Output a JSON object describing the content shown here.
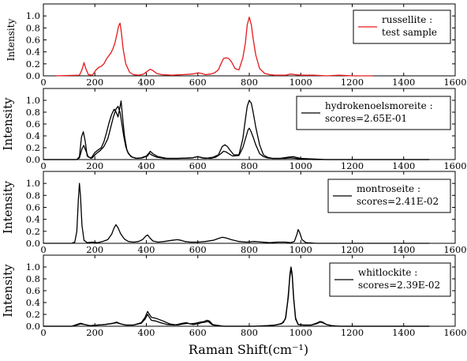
{
  "chart_data": [
    {
      "type": "line",
      "ylabel": "Intensity",
      "xlim": [
        0,
        1600
      ],
      "ylim": [
        0,
        1.2
      ],
      "xticks": [
        "0",
        "200",
        "400",
        "600",
        "800",
        "1000",
        "1200",
        "1400",
        "1600"
      ],
      "yticks": [
        "0.0",
        "0.2",
        "0.4",
        "0.6",
        "0.8",
        "1.0"
      ],
      "legend": {
        "line1": "russellite :",
        "line2": "test sample",
        "position": "top-right"
      },
      "series": [
        {
          "name": "russellite : test sample",
          "color": "#e31a1c",
          "x": [
            50,
            140,
            150,
            158,
            165,
            175,
            190,
            205,
            215,
            225,
            235,
            245,
            255,
            262,
            270,
            278,
            286,
            292,
            298,
            303,
            310,
            320,
            335,
            350,
            370,
            390,
            405,
            415,
            425,
            440,
            460,
            500,
            540,
            580,
            600,
            615,
            630,
            650,
            665,
            680,
            690,
            700,
            710,
            720,
            730,
            745,
            760,
            775,
            785,
            792,
            800,
            808,
            815,
            825,
            840,
            860,
            880,
            900,
            920,
            940,
            960,
            980,
            1000,
            1050,
            1100,
            1150,
            1200,
            1250,
            1280
          ],
          "y": [
            0.0,
            0.01,
            0.1,
            0.22,
            0.12,
            0.02,
            0.01,
            0.1,
            0.14,
            0.16,
            0.2,
            0.28,
            0.34,
            0.38,
            0.45,
            0.55,
            0.7,
            0.83,
            0.88,
            0.72,
            0.45,
            0.2,
            0.06,
            0.02,
            0.01,
            0.03,
            0.08,
            0.11,
            0.09,
            0.04,
            0.02,
            0.01,
            0.02,
            0.03,
            0.05,
            0.04,
            0.02,
            0.03,
            0.05,
            0.1,
            0.2,
            0.29,
            0.3,
            0.29,
            0.24,
            0.12,
            0.1,
            0.3,
            0.55,
            0.85,
            0.98,
            0.85,
            0.62,
            0.35,
            0.12,
            0.04,
            0.02,
            0.01,
            0.01,
            0.01,
            0.03,
            0.02,
            0.01,
            0.01,
            0.0,
            0.01,
            0.0,
            0.0,
            0.0
          ]
        }
      ]
    },
    {
      "type": "line",
      "ylabel": "Intensity",
      "xlim": [
        0,
        1600
      ],
      "ylim": [
        0,
        1.2
      ],
      "xticks": [
        "0",
        "200",
        "400",
        "600",
        "800",
        "1000",
        "1200",
        "1400",
        "1600"
      ],
      "yticks": [
        "0.0",
        "0.2",
        "0.4",
        "0.6",
        "0.8",
        "1.0"
      ],
      "legend": {
        "line1": "hydrokenoelsmoreite :",
        "line2": "scores=2.65E-01",
        "position": "top-right"
      },
      "series": [
        {
          "color": "#000000",
          "x": [
            0,
            130,
            140,
            148,
            155,
            162,
            170,
            185,
            200,
            215,
            225,
            235,
            245,
            255,
            265,
            275,
            283,
            290,
            296,
            302,
            308,
            315,
            325,
            340,
            360,
            380,
            400,
            410,
            420,
            440,
            470,
            520,
            580,
            600,
            615,
            630,
            660,
            680,
            695,
            705,
            715,
            725,
            740,
            760,
            775,
            785,
            792,
            800,
            808,
            815,
            825,
            840,
            855,
            870,
            890,
            910,
            940,
            960,
            980,
            1000,
            1050,
            1100,
            1200,
            1300,
            1400,
            1500
          ],
          "y": [
            0.0,
            0.0,
            0.05,
            0.38,
            0.47,
            0.32,
            0.06,
            0.02,
            0.12,
            0.17,
            0.2,
            0.3,
            0.45,
            0.62,
            0.76,
            0.85,
            0.8,
            0.72,
            0.85,
            0.99,
            0.7,
            0.4,
            0.15,
            0.05,
            0.02,
            0.03,
            0.06,
            0.11,
            0.08,
            0.04,
            0.02,
            0.02,
            0.03,
            0.05,
            0.03,
            0.02,
            0.04,
            0.08,
            0.22,
            0.25,
            0.22,
            0.16,
            0.08,
            0.08,
            0.35,
            0.68,
            0.9,
            1.0,
            0.95,
            0.8,
            0.55,
            0.25,
            0.08,
            0.04,
            0.02,
            0.02,
            0.02,
            0.03,
            0.02,
            0.01,
            0.0,
            0.0,
            0.0,
            0.0,
            0.0,
            0.0
          ]
        },
        {
          "color": "#000000",
          "x": [
            0,
            130,
            140,
            150,
            157,
            165,
            175,
            190,
            205,
            220,
            235,
            250,
            262,
            272,
            282,
            290,
            298,
            305,
            312,
            320,
            330,
            345,
            365,
            385,
            405,
            415,
            425,
            445,
            480,
            530,
            580,
            600,
            620,
            650,
            670,
            690,
            700,
            710,
            720,
            735,
            760,
            775,
            787,
            795,
            800,
            806,
            815,
            825,
            840,
            855,
            870,
            890,
            920,
            950,
            970,
            1000,
            1100,
            1200,
            1300,
            1400,
            1500
          ],
          "y": [
            0.0,
            0.0,
            0.03,
            0.18,
            0.24,
            0.15,
            0.04,
            0.03,
            0.1,
            0.15,
            0.22,
            0.35,
            0.55,
            0.72,
            0.85,
            0.9,
            0.8,
            0.6,
            0.4,
            0.22,
            0.1,
            0.04,
            0.02,
            0.03,
            0.06,
            0.14,
            0.1,
            0.05,
            0.02,
            0.02,
            0.03,
            0.05,
            0.03,
            0.02,
            0.04,
            0.1,
            0.14,
            0.13,
            0.1,
            0.06,
            0.07,
            0.2,
            0.38,
            0.5,
            0.53,
            0.48,
            0.38,
            0.25,
            0.1,
            0.05,
            0.03,
            0.02,
            0.02,
            0.04,
            0.05,
            0.02,
            0.0,
            0.0,
            0.0,
            0.0,
            0.0
          ]
        }
      ]
    },
    {
      "type": "line",
      "ylabel": "Intensity",
      "xlim": [
        0,
        1600
      ],
      "ylim": [
        0,
        1.2
      ],
      "xticks": [
        "0",
        "200",
        "400",
        "600",
        "800",
        "1000",
        "1200",
        "1400",
        "1600"
      ],
      "yticks": [
        "0.0",
        "0.2",
        "0.4",
        "0.6",
        "0.8",
        "1.0"
      ],
      "legend": {
        "line1": "montroseite :",
        "line2": "scores=2.41E-02",
        "position": "top-right"
      },
      "series": [
        {
          "color": "#000000",
          "x": [
            0,
            110,
            122,
            130,
            136,
            140,
            144,
            150,
            158,
            170,
            190,
            210,
            230,
            250,
            265,
            275,
            282,
            290,
            300,
            315,
            330,
            350,
            370,
            385,
            398,
            405,
            412,
            425,
            445,
            470,
            500,
            520,
            535,
            550,
            570,
            600,
            630,
            660,
            680,
            695,
            710,
            730,
            760,
            790,
            820,
            850,
            880,
            910,
            940,
            960,
            975,
            985,
            990,
            996,
            1005,
            1020,
            1060,
            1100,
            1200,
            1300,
            1400,
            1500
          ],
          "y": [
            0.0,
            0.0,
            0.02,
            0.2,
            0.75,
            1.0,
            0.8,
            0.3,
            0.05,
            0.01,
            0.02,
            0.01,
            0.03,
            0.06,
            0.15,
            0.26,
            0.31,
            0.26,
            0.16,
            0.07,
            0.03,
            0.02,
            0.03,
            0.06,
            0.12,
            0.14,
            0.1,
            0.04,
            0.02,
            0.03,
            0.05,
            0.06,
            0.05,
            0.03,
            0.02,
            0.02,
            0.03,
            0.05,
            0.08,
            0.1,
            0.09,
            0.06,
            0.03,
            0.02,
            0.03,
            0.02,
            0.01,
            0.02,
            0.02,
            0.01,
            0.03,
            0.15,
            0.23,
            0.18,
            0.06,
            0.01,
            0.0,
            0.0,
            0.0,
            0.0,
            0.0,
            0.0
          ]
        }
      ]
    },
    {
      "type": "line",
      "ylabel": "Intensity",
      "xlabel": "Raman Shift(cm⁻¹)",
      "xlim": [
        0,
        1600
      ],
      "ylim": [
        0,
        1.2
      ],
      "xticks": [
        "0",
        "200",
        "400",
        "600",
        "800",
        "1000",
        "1200",
        "1400",
        "1600"
      ],
      "yticks": [
        "0.0",
        "0.2",
        "0.4",
        "0.6",
        "0.8",
        "1.0"
      ],
      "legend": {
        "line1": "whitlockite :",
        "line2": "scores=2.39E-02",
        "position": "top-right"
      },
      "series": [
        {
          "color": "#000000",
          "x": [
            0,
            110,
            130,
            145,
            160,
            180,
            210,
            240,
            270,
            285,
            300,
            320,
            350,
            380,
            395,
            405,
            412,
            420,
            435,
            455,
            480,
            510,
            540,
            555,
            570,
            590,
            610,
            625,
            635,
            645,
            660,
            700,
            760,
            820,
            870,
            900,
            920,
            932,
            942,
            950,
            957,
            962,
            967,
            973,
            980,
            990,
            1010,
            1040,
            1060,
            1075,
            1085,
            1100,
            1120,
            1150,
            1200,
            1300,
            1400,
            1500
          ],
          "y": [
            0.0,
            0.0,
            0.02,
            0.04,
            0.03,
            0.01,
            0.02,
            0.03,
            0.05,
            0.06,
            0.04,
            0.02,
            0.02,
            0.05,
            0.12,
            0.2,
            0.15,
            0.1,
            0.09,
            0.06,
            0.03,
            0.02,
            0.05,
            0.06,
            0.04,
            0.05,
            0.07,
            0.08,
            0.1,
            0.09,
            0.02,
            0.0,
            0.0,
            0.0,
            0.01,
            0.02,
            0.04,
            0.06,
            0.15,
            0.45,
            0.8,
            0.98,
            0.85,
            0.45,
            0.12,
            0.03,
            0.02,
            0.02,
            0.04,
            0.07,
            0.06,
            0.03,
            0.01,
            0.0,
            0.0,
            0.0,
            0.0,
            0.0
          ]
        },
        {
          "color": "#000000",
          "x": [
            0,
            110,
            130,
            145,
            160,
            180,
            210,
            240,
            270,
            285,
            300,
            320,
            350,
            380,
            395,
            405,
            412,
            420,
            440,
            465,
            490,
            520,
            545,
            560,
            580,
            600,
            615,
            628,
            640,
            655,
            700,
            760,
            820,
            870,
            900,
            925,
            940,
            952,
            958,
            962,
            966,
            972,
            980,
            990,
            1010,
            1040,
            1060,
            1075,
            1085,
            1100,
            1120,
            1150,
            1200,
            1300,
            1400,
            1500
          ],
          "y": [
            0.0,
            0.0,
            0.03,
            0.05,
            0.03,
            0.01,
            0.02,
            0.03,
            0.05,
            0.07,
            0.04,
            0.02,
            0.02,
            0.06,
            0.15,
            0.25,
            0.2,
            0.15,
            0.13,
            0.09,
            0.04,
            0.02,
            0.04,
            0.05,
            0.03,
            0.04,
            0.06,
            0.07,
            0.08,
            0.03,
            0.0,
            0.0,
            0.0,
            0.01,
            0.02,
            0.04,
            0.12,
            0.5,
            0.88,
            1.0,
            0.9,
            0.5,
            0.14,
            0.03,
            0.02,
            0.02,
            0.05,
            0.08,
            0.07,
            0.03,
            0.01,
            0.0,
            0.0,
            0.0,
            0.0,
            0.0
          ]
        }
      ]
    }
  ]
}
